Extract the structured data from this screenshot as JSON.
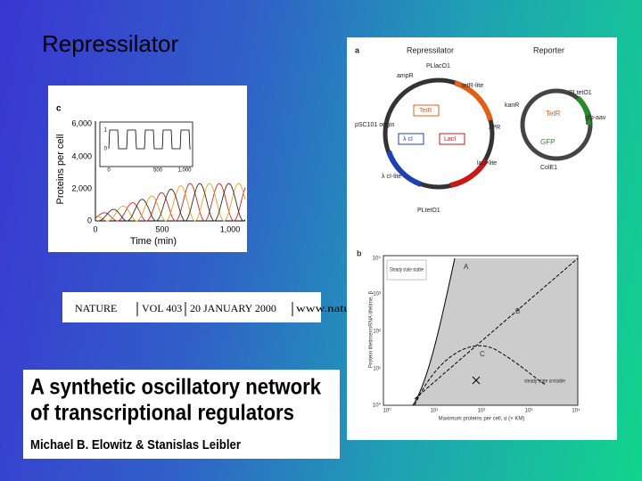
{
  "slide": {
    "title": "Repressilator"
  },
  "figure_c": {
    "panel": "c",
    "y_label": "Proteins per cell",
    "x_label": "Time (min)",
    "yticks": [
      "6,000",
      "4,000",
      "2,000",
      "0"
    ],
    "xticks": [
      "0",
      "500",
      "1,000"
    ],
    "inset_yticks": [
      "1",
      "0"
    ],
    "inset_xticks": [
      "0",
      "500",
      "1,000"
    ]
  },
  "citation": {
    "journal": "NATURE",
    "volume": "VOL 403",
    "date": "20 JANUARY 2000",
    "url": "www.nature.com"
  },
  "paper": {
    "title_line1": "A synthetic oscillatory network",
    "title_line2": "of transcriptional regulators",
    "authors": "Michael B. Elowitz & Stanislas Leibler"
  },
  "figure_a": {
    "panel": "a",
    "left_title": "Repressilator",
    "right_title": "Reporter",
    "labels": [
      "PLlacO1",
      "ampR",
      "tetR-lite",
      "pSC101 origin",
      "TetR",
      "LacI",
      "λ cI",
      "λPR",
      "lacI-lite",
      "λ cI-lite",
      "PLtetO1"
    ],
    "reporter_labels": [
      "kanR",
      "PLtetO1",
      "TetR",
      "gfp-aav",
      "GFP",
      "ColE1"
    ]
  },
  "figure_b": {
    "panel": "b",
    "y_label": "Protein lifetime/mRNA lifetime, β",
    "x_label": "Maximum proteins per cell, α (× KM)",
    "yticks": [
      "10⁴",
      "10³",
      "10²",
      "10¹",
      "10⁰"
    ],
    "xticks": [
      "10⁰",
      "10¹",
      "10²",
      "10³",
      "10⁴"
    ],
    "stable_label": "Steady state stable",
    "unstable_label": "steady state unstable",
    "region_labels": [
      "A",
      "B",
      "C"
    ]
  }
}
